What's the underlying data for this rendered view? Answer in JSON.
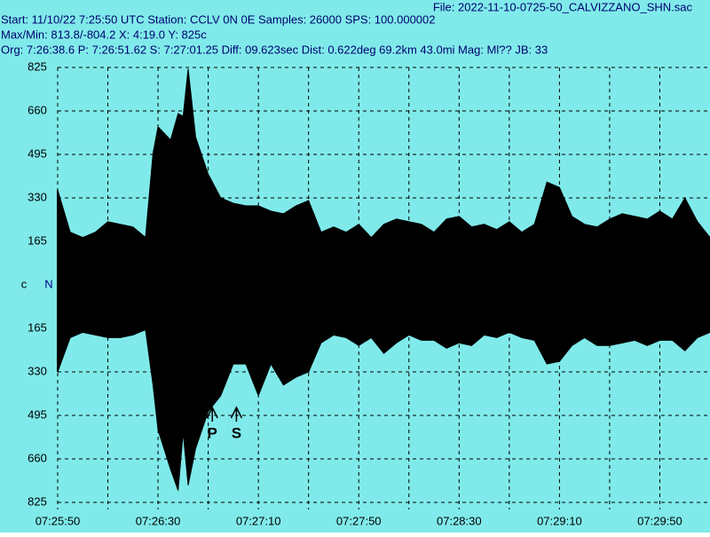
{
  "header": {
    "file": "File: 2022-11-10-0725-50_CALVIZZANO_SHN.sac",
    "start": "Start: 11/10/22  7:25:50 UTC Station: CCLV 0N 0E Samples: 26000  SPS: 100.000002",
    "maxmin": "Max/Min: 813.8/-804.2 X: 4:19.0 Y: 825c",
    "org": "Org: 7:26:38.6 P: 7:26:51.62 S: 7:27:01.25 Diff: 09.623sec Dist: 0.622deg 69.2km 43.0mi  Mag: Ml?? JB: 33"
  },
  "chart_data": {
    "type": "area",
    "background": "#80eaea",
    "grid": true,
    "xlim": [
      0,
      260
    ],
    "ylim": [
      -825,
      825
    ],
    "center_label": "N",
    "xticks": [
      {
        "value": 0,
        "label": "07:25:50"
      },
      {
        "value": 20,
        "label": null
      },
      {
        "value": 40,
        "label": "07:26:30"
      },
      {
        "value": 60,
        "label": null
      },
      {
        "value": 80,
        "label": "07:27:10"
      },
      {
        "value": 100,
        "label": null
      },
      {
        "value": 120,
        "label": "07:27:50"
      },
      {
        "value": 140,
        "label": null
      },
      {
        "value": 160,
        "label": "07:28:30"
      },
      {
        "value": 180,
        "label": null
      },
      {
        "value": 200,
        "label": "07:29:10"
      },
      {
        "value": 220,
        "label": null
      },
      {
        "value": 240,
        "label": "07:29:50"
      }
    ],
    "yticks": [
      825,
      660,
      495,
      330,
      165,
      {
        "value": 0,
        "label": "c"
      },
      {
        "value": -165,
        "label": "165"
      },
      {
        "value": -330,
        "label": "330"
      },
      {
        "value": -495,
        "label": "495"
      },
      {
        "value": -660,
        "label": "660"
      },
      {
        "value": -825,
        "label": "825"
      }
    ],
    "x": [
      0,
      5,
      10,
      15,
      20,
      25,
      30,
      35,
      38,
      40,
      45,
      48,
      50,
      52,
      55,
      60,
      65,
      70,
      75,
      80,
      85,
      90,
      95,
      100,
      105,
      110,
      115,
      120,
      125,
      130,
      135,
      140,
      145,
      150,
      155,
      160,
      165,
      170,
      175,
      180,
      185,
      190,
      195,
      200,
      205,
      210,
      215,
      220,
      225,
      230,
      235,
      240,
      245,
      250,
      255,
      260
    ],
    "series": [
      {
        "color": "#000000",
        "values": [
          360,
          200,
          180,
          200,
          240,
          230,
          220,
          180,
          500,
          600,
          550,
          650,
          640,
          820,
          560,
          420,
          330,
          310,
          300,
          300,
          280,
          270,
          300,
          320,
          200,
          220,
          200,
          230,
          180,
          230,
          250,
          240,
          230,
          200,
          250,
          260,
          220,
          230,
          210,
          240,
          200,
          230,
          390,
          370,
          260,
          230,
          220,
          250,
          270,
          260,
          250,
          280,
          250,
          330,
          240,
          180
        ]
      },
      {
        "color": "#000000",
        "values": [
          -330,
          -200,
          -180,
          -190,
          -200,
          -200,
          -190,
          -170,
          -380,
          -550,
          -700,
          -780,
          -560,
          -760,
          -620,
          -480,
          -420,
          -300,
          -300,
          -420,
          -300,
          -380,
          -350,
          -330,
          -220,
          -190,
          -200,
          -230,
          -200,
          -260,
          -220,
          -190,
          -210,
          -210,
          -240,
          -220,
          -230,
          -190,
          -200,
          -180,
          -200,
          -210,
          -300,
          -290,
          -230,
          -200,
          -230,
          -230,
          -220,
          -210,
          -230,
          -210,
          -210,
          -250,
          -200,
          -180
        ]
      }
    ],
    "markers": [
      {
        "label": "P",
        "x": 61.62
      },
      {
        "label": "S",
        "x": 71.25
      }
    ]
  }
}
